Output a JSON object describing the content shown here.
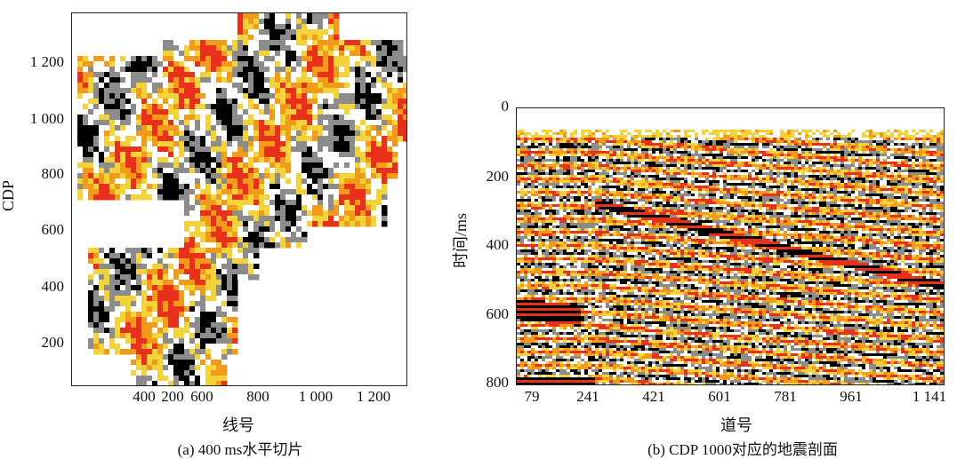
{
  "panels": {
    "a": {
      "caption": "(a) 400 ms水平切片",
      "ylabel": "CDP",
      "xlabel": "线号",
      "yticks": [
        "1 200",
        "1 000",
        "800",
        "600",
        "400",
        "200"
      ],
      "xticks": [
        "200",
        "400",
        "600",
        "800",
        "1 000",
        "1 200"
      ]
    },
    "b": {
      "caption": "(b) CDP 1000对应的地震剖面",
      "ylabel": "时间/ms",
      "xlabel": "道号",
      "yticks": [
        "0",
        "200",
        "400",
        "600",
        "800"
      ],
      "xticks": [
        "79",
        "241",
        "421",
        "601",
        "781",
        "961",
        "1 141"
      ]
    }
  },
  "chart_data": [
    {
      "type": "heatmap",
      "xlabel": "线号",
      "ylabel": "CDP",
      "x_ticks": [
        200,
        400,
        600,
        800,
        1000,
        1200
      ],
      "y_ticks": [
        200,
        400,
        600,
        800,
        1000,
        1200
      ],
      "xlim": [
        150,
        1320
      ],
      "ylim": [
        60,
        1370
      ],
      "colors": [
        "#000000",
        "#8c8c8c",
        "#ffffff",
        "#f2d43a",
        "#f29a1a",
        "#e8301c"
      ]
    },
    {
      "type": "heatmap",
      "xlabel": "道号",
      "ylabel": "时间/ms",
      "x_ticks": [
        79,
        241,
        421,
        601,
        781,
        961,
        1141
      ],
      "y_ticks": [
        0,
        200,
        400,
        600,
        800
      ],
      "xlim": [
        30,
        1141
      ],
      "ylim": [
        800,
        0
      ],
      "colors": [
        "#000000",
        "#8c8c8c",
        "#ffffff",
        "#f2d43a",
        "#f29a1a",
        "#e8301c"
      ]
    }
  ]
}
